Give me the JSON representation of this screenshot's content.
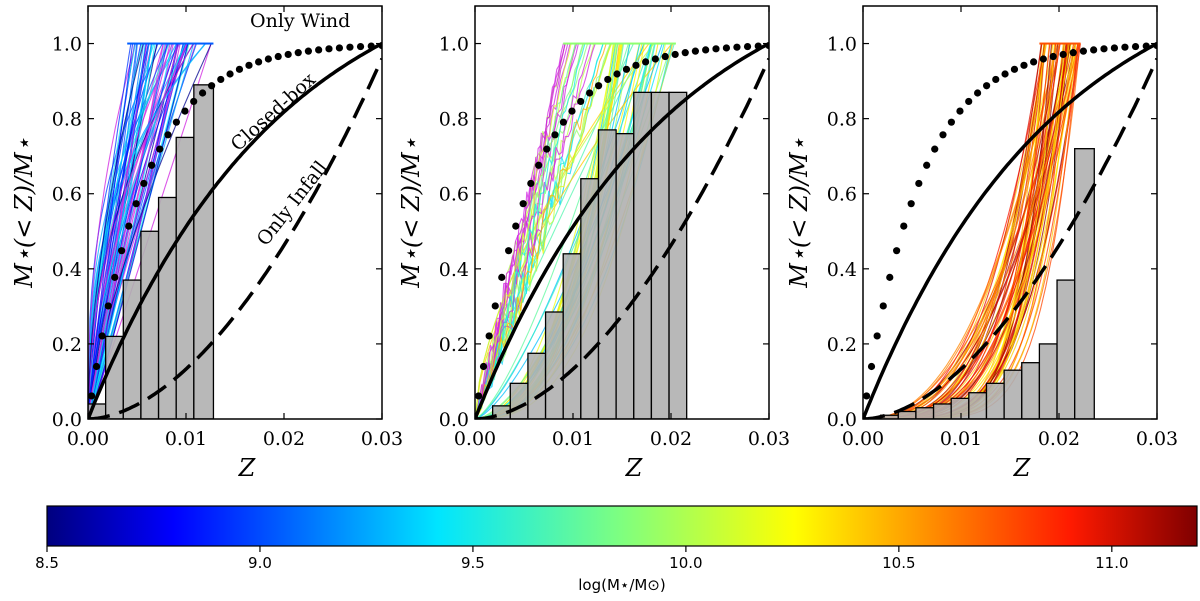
{
  "chart_data": [
    {
      "type": "line",
      "panel": "left",
      "xlabel": "Z",
      "ylabel": "M⋆(< Z)/M⋆",
      "xlim": [
        0,
        0.03
      ],
      "ylim": [
        0,
        1.1
      ],
      "xticks": [
        "0.00",
        "0.01",
        "0.02",
        "0.03"
      ],
      "yticks": [
        "0.0",
        "0.2",
        "0.4",
        "0.6",
        "0.8",
        "1.0"
      ],
      "annotations": [
        "Only Wind",
        "Closed-box",
        "Only Infall"
      ],
      "histogram": {
        "edges": [
          0.0,
          0.0018,
          0.0036,
          0.0054,
          0.0072,
          0.009,
          0.0108,
          0.0128
        ],
        "values": [
          0.04,
          0.22,
          0.37,
          0.5,
          0.59,
          0.75,
          0.89
        ]
      },
      "galaxy_tracks": {
        "zmax_range": [
          0.004,
          0.0128
        ],
        "logmass_range": [
          8.5,
          9.6
        ]
      }
    },
    {
      "type": "line",
      "panel": "middle",
      "xlabel": "Z",
      "ylabel": "M⋆(< Z)/M⋆",
      "xlim": [
        0,
        0.03
      ],
      "ylim": [
        0,
        1.1
      ],
      "xticks": [
        "0.00",
        "0.01",
        "0.02",
        "0.03"
      ],
      "yticks": [
        "0.0",
        "0.2",
        "0.4",
        "0.6",
        "0.8",
        "1.0"
      ],
      "histogram": {
        "edges": [
          0.0018,
          0.0036,
          0.0054,
          0.0072,
          0.009,
          0.0108,
          0.0126,
          0.0144,
          0.0162,
          0.018,
          0.0198,
          0.0216
        ],
        "values": [
          0.035,
          0.095,
          0.175,
          0.285,
          0.44,
          0.64,
          0.77,
          0.76,
          0.87,
          0.87,
          0.87
        ]
      },
      "galaxy_tracks": {
        "zmax_range": [
          0.009,
          0.0205
        ],
        "logmass_range": [
          9.3,
          10.5
        ]
      }
    },
    {
      "type": "line",
      "panel": "right",
      "xlabel": "Z",
      "ylabel": "M⋆(< Z)/M⋆",
      "xlim": [
        0,
        0.03
      ],
      "ylim": [
        0,
        1.1
      ],
      "xticks": [
        "0.00",
        "0.01",
        "0.02",
        "0.03"
      ],
      "yticks": [
        "0.0",
        "0.2",
        "0.4",
        "0.6",
        "0.8",
        "1.0"
      ],
      "histogram": {
        "edges": [
          0.0,
          0.0018,
          0.0036,
          0.0054,
          0.0072,
          0.009,
          0.0108,
          0.0126,
          0.0144,
          0.0162,
          0.018,
          0.0198,
          0.0216,
          0.0236
        ],
        "values": [
          0.0,
          0.01,
          0.02,
          0.03,
          0.04,
          0.055,
          0.07,
          0.095,
          0.13,
          0.15,
          0.2,
          0.37,
          0.72
        ]
      },
      "galaxy_tracks": {
        "zmax_range": [
          0.018,
          0.0222
        ],
        "logmass_range": [
          10.3,
          11.2
        ]
      }
    }
  ],
  "reference_models": {
    "zmax": 0.03,
    "only_wind": "dotted",
    "closed_box": "solid",
    "only_infall": "dashed"
  },
  "colorbar": {
    "label": "log(M⋆/M⊙)",
    "range": [
      8.5,
      11.2
    ],
    "ticks": [
      "8.5",
      "9.0",
      "9.5",
      "10.0",
      "10.5",
      "11.0"
    ],
    "colors": [
      "#00007f",
      "#0000ff",
      "#007fff",
      "#00e5ff",
      "#4cffaa",
      "#aaff4c",
      "#ffe500",
      "#ff7f00",
      "#ff1a00",
      "#7f0000"
    ]
  }
}
